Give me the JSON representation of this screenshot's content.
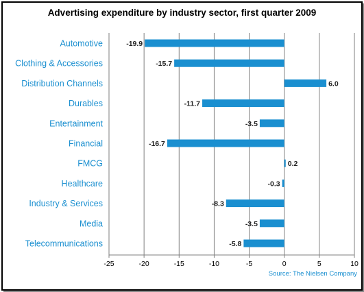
{
  "chart_data": {
    "type": "bar",
    "orientation": "horizontal",
    "title": "Advertising expenditure by industry sector, first quarter 2009",
    "source": "Source: The Nielsen Company",
    "categories": [
      "Automotive",
      "Clothing & Accessories",
      "Distribution Channels",
      "Durables",
      "Entertainment",
      "Financial",
      "FMCG",
      "Healthcare",
      "Industry & Services",
      "Media",
      "Telecommunications"
    ],
    "values": [
      -19.9,
      -15.7,
      6.0,
      -11.7,
      -3.5,
      -16.7,
      0.2,
      -0.3,
      -8.3,
      -3.5,
      -5.8
    ],
    "value_labels": [
      "-19.9",
      "-15.7",
      "6.0",
      "-11.7",
      "-3.5",
      "-16.7",
      "0.2",
      "-0.3",
      "-8.3",
      "-3.5",
      "-5.8"
    ],
    "xlim": [
      -25,
      10
    ],
    "xticks": [
      -25,
      -20,
      -15,
      -10,
      -5,
      0,
      5,
      10
    ],
    "xtick_labels": [
      "-25",
      "-20",
      "-15",
      "-10",
      "-5",
      "0",
      "5",
      "10"
    ],
    "grid": "vertical",
    "bar_color": "#1a8fd0",
    "category_label_color": "#1a8fd0"
  }
}
